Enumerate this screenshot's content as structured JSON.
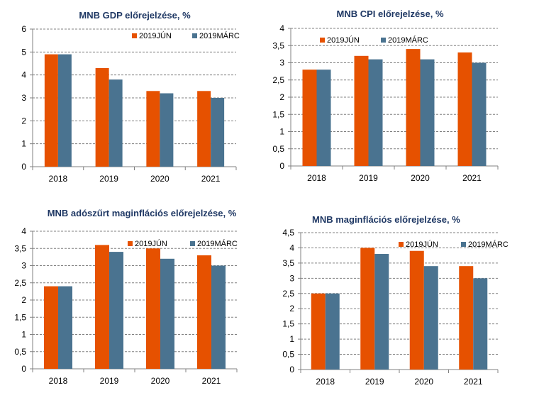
{
  "chart_data": [
    {
      "type": "bar",
      "title": "MNB GDP előrejelzése, %",
      "categories": [
        "2018",
        "2019",
        "2020",
        "2021"
      ],
      "series": [
        {
          "name": "2019JÚN",
          "values": [
            4.9,
            4.3,
            3.3,
            3.3
          ]
        },
        {
          "name": "2019MÁRC",
          "values": [
            4.9,
            3.8,
            3.2,
            3.0
          ]
        }
      ],
      "ylim": [
        0,
        6
      ],
      "yticks": [
        "0",
        "1",
        "2",
        "3",
        "4",
        "5",
        "6"
      ],
      "grid": true,
      "legend": "top-right"
    },
    {
      "type": "bar",
      "title": "MNB CPI  előrejelzése, %",
      "categories": [
        "2018",
        "2019",
        "2020",
        "2021"
      ],
      "series": [
        {
          "name": "2019JÚN",
          "values": [
            2.8,
            3.2,
            3.4,
            3.3
          ]
        },
        {
          "name": "2019MÁRC",
          "values": [
            2.8,
            3.1,
            3.1,
            3.0
          ]
        }
      ],
      "ylim": [
        0,
        4
      ],
      "yticks": [
        "0",
        "0,5",
        "1",
        "1,5",
        "2",
        "2,5",
        "3",
        "3,5",
        "4"
      ],
      "grid": true,
      "legend": "top"
    },
    {
      "type": "bar",
      "title": "MNB adószűrt maginflációs  előrejelzése, %",
      "categories": [
        "2018",
        "2019",
        "2020",
        "2021"
      ],
      "series": [
        {
          "name": "2019JÚN",
          "values": [
            2.4,
            3.6,
            3.5,
            3.3
          ]
        },
        {
          "name": "2019MÁRC",
          "values": [
            2.4,
            3.4,
            3.2,
            3.0
          ]
        }
      ],
      "ylim": [
        0,
        4
      ],
      "yticks": [
        "0",
        "0,5",
        "1",
        "1,5",
        "2",
        "2,5",
        "3",
        "3,5",
        "4"
      ],
      "grid": true,
      "legend": "top-right"
    },
    {
      "type": "bar",
      "title": "MNB maginflációs  előrejelzése, %",
      "categories": [
        "2018",
        "2019",
        "2020",
        "2021"
      ],
      "series": [
        {
          "name": "2019JÚN",
          "values": [
            2.5,
            4.0,
            3.9,
            3.4
          ]
        },
        {
          "name": "2019MÁRC",
          "values": [
            2.5,
            3.8,
            3.4,
            3.0
          ]
        }
      ],
      "ylim": [
        0,
        4.5
      ],
      "yticks": [
        "0",
        "0,5",
        "1",
        "1,5",
        "2",
        "2,5",
        "3",
        "3,5",
        "4",
        "4,5"
      ],
      "grid": true,
      "legend": "top-right"
    }
  ],
  "colors": {
    "jun": "#e65100",
    "marc": "#4a7390",
    "grid": "#808080",
    "axis": "#808080",
    "title": "#1f3864"
  }
}
